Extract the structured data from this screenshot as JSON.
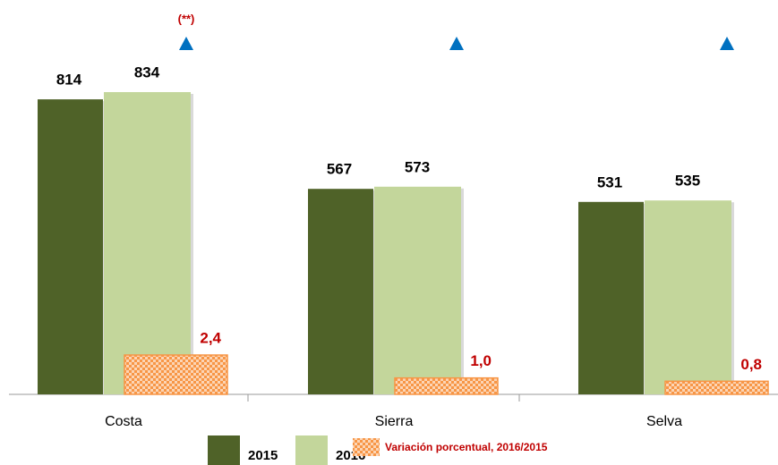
{
  "chart_data": {
    "type": "bar",
    "annotation": "(**)",
    "categories": [
      "Costa",
      "Sierra",
      "Selva"
    ],
    "series": [
      {
        "name": "2015",
        "color": "#4f6228",
        "values": [
          814,
          567,
          531
        ]
      },
      {
        "name": "2016",
        "color": "#c3d69b",
        "values": [
          834,
          573,
          535
        ]
      },
      {
        "name": "Variación porcentual, 2016/2015",
        "color": "#f79646",
        "axis": "y2",
        "values": [
          2.4,
          1.0,
          0.8
        ],
        "value_labels": [
          "2,4",
          "1,0",
          "0,8"
        ]
      }
    ]
  }
}
